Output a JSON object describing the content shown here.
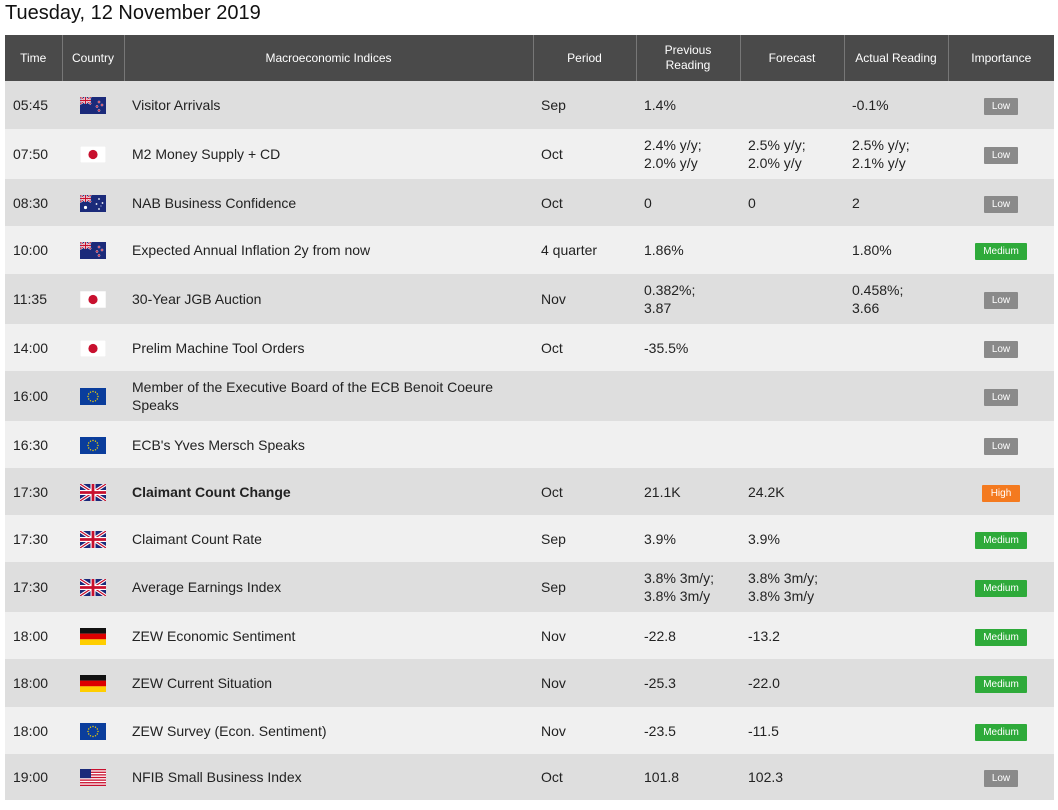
{
  "page_title": "Tuesday, 12 November 2019",
  "headers": {
    "time": "Time",
    "country": "Country",
    "indices": "Macroeconomic Indices",
    "period": "Period",
    "previous_line1": "Previous",
    "previous_line2": "Reading",
    "forecast": "Forecast",
    "actual": "Actual Reading",
    "importance": "Importance"
  },
  "colors": {
    "low": "#8a8a8a",
    "medium": "#2eaa3a",
    "high": "#f47a1f",
    "header_bg": "#4a4a4a"
  },
  "rows": [
    {
      "time": "05:45",
      "country": "new-zealand-flag",
      "event": "Visitor Arrivals",
      "bold": false,
      "period": "Sep",
      "previous": [
        "1.4%"
      ],
      "forecast": [],
      "actual": [
        "-0.1%"
      ],
      "importance": "Low",
      "level": "low",
      "h": 48
    },
    {
      "time": "07:50",
      "country": "japan-flag",
      "event": "M2 Money Supply + CD",
      "bold": false,
      "period": "Oct",
      "previous": [
        "2.4% y/y;",
        "2.0% y/y"
      ],
      "forecast": [
        "2.5% y/y;",
        "2.0% y/y"
      ],
      "actual": [
        "2.5% y/y;",
        "2.1% y/y"
      ],
      "importance": "Low",
      "level": "low",
      "h": 50
    },
    {
      "time": "08:30",
      "country": "australia-flag",
      "event": "NAB Business Confidence",
      "bold": false,
      "period": "Oct",
      "previous": [
        "0"
      ],
      "forecast": [
        "0"
      ],
      "actual": [
        "2"
      ],
      "importance": "Low",
      "level": "low",
      "h": 47
    },
    {
      "time": "10:00",
      "country": "new-zealand-flag",
      "event": "Expected Annual Inflation 2y from now",
      "bold": false,
      "period": "4 quarter",
      "previous": [
        "1.86%"
      ],
      "forecast": [],
      "actual": [
        "1.80%"
      ],
      "importance": "Medium",
      "level": "medium",
      "h": 48
    },
    {
      "time": "11:35",
      "country": "japan-flag",
      "event": "30-Year JGB Auction",
      "bold": false,
      "period": "Nov",
      "previous": [
        "0.382%;",
        "3.87"
      ],
      "forecast": [],
      "actual": [
        "0.458%;",
        "3.66"
      ],
      "importance": "Low",
      "level": "low",
      "h": 50
    },
    {
      "time": "14:00",
      "country": "japan-flag",
      "event": "Prelim Machine Tool Orders",
      "bold": false,
      "period": "Oct",
      "previous": [
        "-35.5%"
      ],
      "forecast": [],
      "actual": [],
      "importance": "Low",
      "level": "low",
      "h": 47
    },
    {
      "time": "16:00",
      "country": "eu-flag",
      "event": "Member of the Executive Board of the ECB Benoit Coeure Speaks",
      "bold": false,
      "period": "",
      "previous": [],
      "forecast": [],
      "actual": [],
      "importance": "Low",
      "level": "low",
      "h": 50
    },
    {
      "time": "16:30",
      "country": "eu-flag",
      "event": "ECB's Yves Mersch Speaks",
      "bold": false,
      "period": "",
      "previous": [],
      "forecast": [],
      "actual": [],
      "importance": "Low",
      "level": "low",
      "h": 47
    },
    {
      "time": "17:30",
      "country": "uk-flag",
      "event": "Claimant Count Change",
      "bold": true,
      "period": "Oct",
      "previous": [
        "21.1K"
      ],
      "forecast": [
        "24.2K"
      ],
      "actual": [],
      "importance": "High",
      "level": "high",
      "h": 47
    },
    {
      "time": "17:30",
      "country": "uk-flag",
      "event": "Claimant Count Rate",
      "bold": false,
      "period": "Sep",
      "previous": [
        "3.9%"
      ],
      "forecast": [
        "3.9%"
      ],
      "actual": [],
      "importance": "Medium",
      "level": "medium",
      "h": 47
    },
    {
      "time": "17:30",
      "country": "uk-flag",
      "event": "Average Earnings Index",
      "bold": false,
      "period": "Sep",
      "previous": [
        "3.8% 3m/y;",
        "3.8% 3m/y"
      ],
      "forecast": [
        "3.8% 3m/y;",
        "3.8% 3m/y"
      ],
      "actual": [],
      "importance": "Medium",
      "level": "medium",
      "h": 50
    },
    {
      "time": "18:00",
      "country": "germany-flag",
      "event": "ZEW Economic Sentiment",
      "bold": false,
      "period": "Nov",
      "previous": [
        "-22.8"
      ],
      "forecast": [
        "-13.2"
      ],
      "actual": [],
      "importance": "Medium",
      "level": "medium",
      "h": 47
    },
    {
      "time": "18:00",
      "country": "germany-flag",
      "event": "ZEW Current Situation",
      "bold": false,
      "period": "Nov",
      "previous": [
        "-25.3"
      ],
      "forecast": [
        "-22.0"
      ],
      "actual": [],
      "importance": "Medium",
      "level": "medium",
      "h": 48
    },
    {
      "time": "18:00",
      "country": "eu-flag",
      "event": "ZEW Survey (Econ. Sentiment)",
      "bold": false,
      "period": "Nov",
      "previous": [
        "-23.5"
      ],
      "forecast": [
        "-11.5"
      ],
      "actual": [],
      "importance": "Medium",
      "level": "medium",
      "h": 47
    },
    {
      "time": "19:00",
      "country": "usa-flag",
      "event": "NFIB Small Business Index",
      "bold": false,
      "period": "Oct",
      "previous": [
        "101.8"
      ],
      "forecast": [
        "102.3"
      ],
      "actual": [],
      "importance": "Low",
      "level": "low",
      "h": 46
    }
  ]
}
